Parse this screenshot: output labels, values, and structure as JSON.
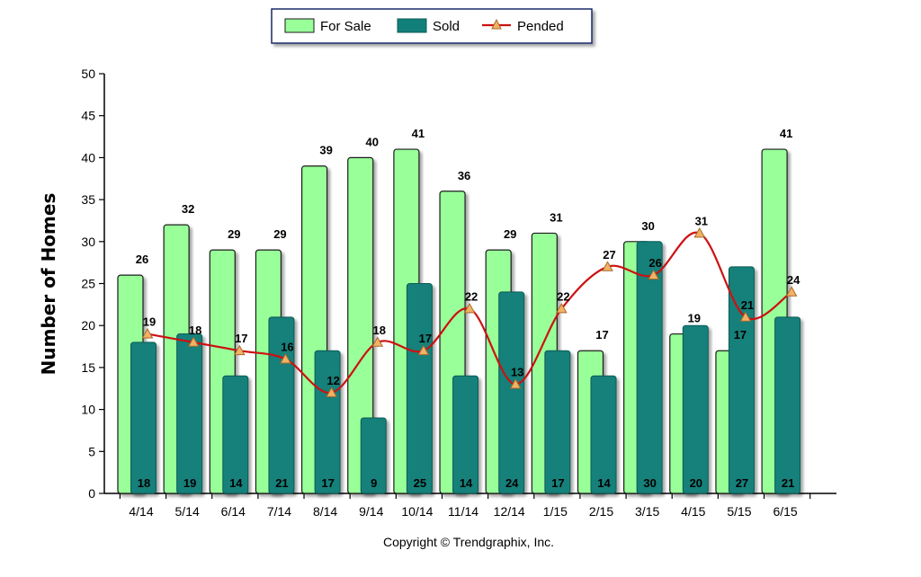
{
  "chart_data": {
    "type": "bar",
    "categories": [
      "4/14",
      "5/14",
      "6/14",
      "7/14",
      "8/14",
      "9/14",
      "10/14",
      "11/14",
      "12/14",
      "1/15",
      "2/15",
      "3/15",
      "4/15",
      "5/15",
      "6/15"
    ],
    "series": [
      {
        "name": "For Sale",
        "kind": "bar",
        "color": "#99ff99",
        "values": [
          26,
          32,
          29,
          29,
          39,
          40,
          41,
          36,
          29,
          31,
          17,
          30,
          19,
          17,
          41
        ]
      },
      {
        "name": "Sold",
        "kind": "bar",
        "color": "#12807a",
        "values": [
          18,
          19,
          14,
          21,
          17,
          9,
          25,
          14,
          24,
          17,
          14,
          30,
          20,
          27,
          21
        ]
      },
      {
        "name": "Pended",
        "kind": "line",
        "color": "#cc1111",
        "marker": "triangle",
        "marker_color": "#f2b266",
        "values": [
          19,
          18,
          17,
          16,
          12,
          18,
          17,
          22,
          13,
          22,
          27,
          26,
          31,
          21,
          24
        ]
      }
    ],
    "title": "",
    "xlabel": "",
    "ylabel": "Number of Homes",
    "ylim": [
      0,
      50
    ],
    "yticks": [
      0,
      5,
      10,
      15,
      20,
      25,
      30,
      35,
      40,
      45,
      50
    ],
    "grid": false,
    "legend_position": "top-center"
  },
  "footer": {
    "copyright": "Copyright © Trendgraphix, Inc."
  }
}
